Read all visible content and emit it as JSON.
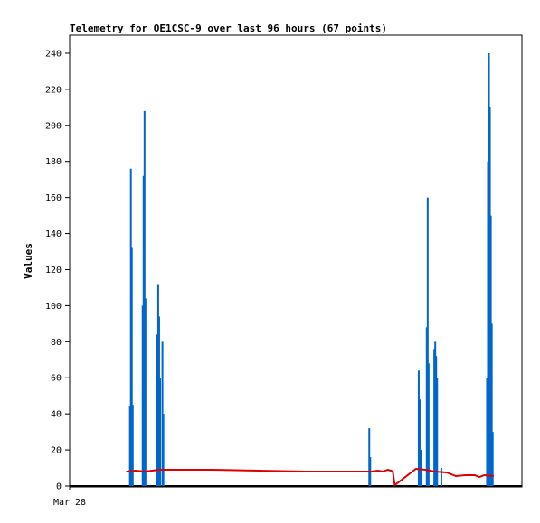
{
  "chart_data": {
    "type": "line",
    "title": "Telemetry for OE1CSC-9 over last 96 hours (67 points)",
    "ylabel": "Values",
    "xlabel": "",
    "x_tick_labels": [
      "Mar 28"
    ],
    "ylim": [
      0,
      250
    ],
    "y_ticks": [
      0,
      20,
      40,
      60,
      80,
      100,
      120,
      140,
      160,
      180,
      200,
      220,
      240
    ],
    "x_range_hours": [
      0,
      96
    ],
    "grid": false,
    "legend": "none",
    "series": [
      {
        "color": "#0066cc",
        "style": "impulses",
        "points": [
          [
            12.8,
            44
          ],
          [
            13.0,
            176
          ],
          [
            13.2,
            132
          ],
          [
            13.4,
            45
          ],
          [
            15.5,
            100
          ],
          [
            15.7,
            172
          ],
          [
            15.9,
            208
          ],
          [
            16.1,
            104
          ],
          [
            18.6,
            84
          ],
          [
            18.8,
            112
          ],
          [
            19.0,
            94
          ],
          [
            19.2,
            60
          ],
          [
            19.7,
            80
          ],
          [
            19.9,
            40
          ],
          [
            63.6,
            32
          ],
          [
            63.8,
            16
          ],
          [
            74.1,
            64
          ],
          [
            74.3,
            48
          ],
          [
            74.5,
            20
          ],
          [
            74.7,
            10
          ],
          [
            75.8,
            88
          ],
          [
            76.0,
            160
          ],
          [
            76.2,
            68
          ],
          [
            77.4,
            76
          ],
          [
            77.6,
            80
          ],
          [
            77.8,
            72
          ],
          [
            78.0,
            60
          ],
          [
            78.9,
            10
          ],
          [
            88.6,
            60
          ],
          [
            88.8,
            180
          ],
          [
            89.0,
            240
          ],
          [
            89.2,
            210
          ],
          [
            89.4,
            150
          ],
          [
            89.6,
            90
          ],
          [
            89.8,
            30
          ]
        ]
      },
      {
        "color": "#dd0000",
        "style": "line",
        "points": [
          [
            12.0,
            8
          ],
          [
            14.0,
            8.5
          ],
          [
            16.0,
            8
          ],
          [
            17.5,
            8.5
          ],
          [
            19.0,
            9
          ],
          [
            22.0,
            9
          ],
          [
            30.0,
            9
          ],
          [
            40.0,
            8.5
          ],
          [
            50.0,
            8
          ],
          [
            60.0,
            8
          ],
          [
            64.0,
            8
          ],
          [
            65.5,
            8.5
          ],
          [
            66.5,
            8
          ],
          [
            67.5,
            9
          ],
          [
            68.2,
            8.5
          ],
          [
            68.6,
            8
          ],
          [
            69.0,
            0.5
          ],
          [
            73.5,
            9.5
          ],
          [
            75.5,
            9
          ],
          [
            77.5,
            8
          ],
          [
            80.0,
            7.5
          ],
          [
            82.0,
            5.5
          ],
          [
            84.0,
            6
          ],
          [
            86.0,
            6
          ],
          [
            87.0,
            5
          ],
          [
            88.0,
            6
          ],
          [
            90.0,
            5.5
          ]
        ]
      }
    ]
  }
}
